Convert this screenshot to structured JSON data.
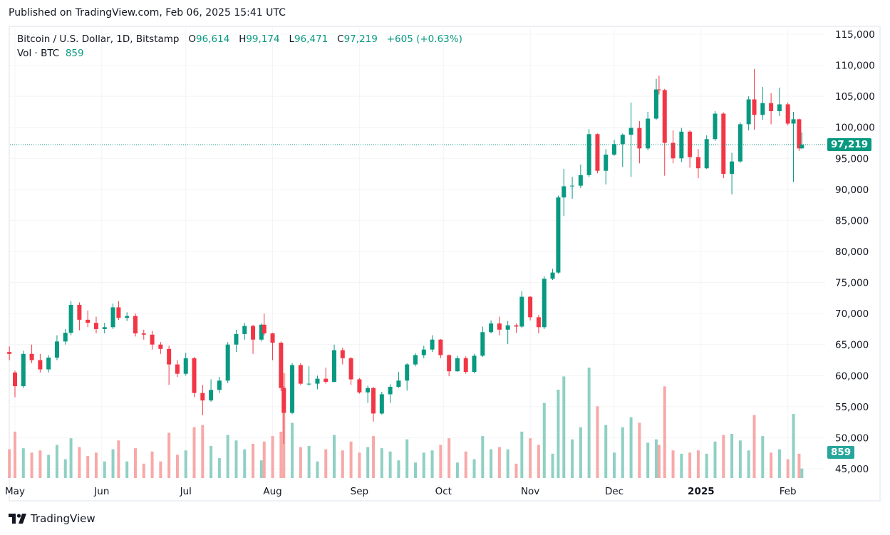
{
  "published": "Published on TradingView.com, Feb 06, 2025 15:41 UTC",
  "legend": {
    "symbol": "Bitcoin / U.S. Dollar, 1D, Bitstamp",
    "o_label": "O",
    "o": "96,614",
    "h_label": "H",
    "h": "99,174",
    "l_label": "L",
    "l": "96,471",
    "c_label": "C",
    "c": "97,219",
    "change": "+605 (+0.63%)",
    "vol_label": "Vol · BTC",
    "vol": "859"
  },
  "footer": {
    "brand": "TradingView",
    "logo_icon": "tradingview-logo-icon"
  },
  "colors": {
    "up": "#089981",
    "down": "#f23645",
    "up_vol": "#8fd0c4",
    "down_vol": "#f7a9a8",
    "grid": "#f3f4f7"
  },
  "chart_data": {
    "type": "candlestick",
    "symbol": "BTCUSD",
    "interval": "1D",
    "ylim": [
      45000,
      115000
    ],
    "y_ticks": [
      "115,000",
      "110,000",
      "105,000",
      "100,000",
      "95,000",
      "90,000",
      "85,000",
      "80,000",
      "75,000",
      "70,000",
      "65,000",
      "60,000",
      "55,000",
      "50,000",
      "45,000"
    ],
    "y_tick_values": [
      115000,
      110000,
      105000,
      100000,
      95000,
      90000,
      85000,
      80000,
      75000,
      70000,
      65000,
      60000,
      55000,
      50000,
      45000
    ],
    "x_ticks": [
      {
        "label": "May",
        "date": "2024-05-01"
      },
      {
        "label": "Jun",
        "date": "2024-06-01"
      },
      {
        "label": "Jul",
        "date": "2024-07-01"
      },
      {
        "label": "Aug",
        "date": "2024-08-01"
      },
      {
        "label": "Sep",
        "date": "2024-09-01"
      },
      {
        "label": "Oct",
        "date": "2024-10-01"
      },
      {
        "label": "Nov",
        "date": "2024-11-01"
      },
      {
        "label": "Dec",
        "date": "2024-12-01"
      },
      {
        "label": "2025",
        "date": "2025-01-01",
        "bold": true
      },
      {
        "label": "Feb",
        "date": "2025-02-01"
      }
    ],
    "grid": true,
    "last_price_label": "97,219",
    "last_volume_label": "859",
    "candles_columns": [
      "date",
      "open",
      "high",
      "low",
      "close",
      "volume"
    ],
    "candles": [
      [
        "2024-04-29",
        63800,
        64700,
        62500,
        63500,
        2600
      ],
      [
        "2024-05-01",
        60500,
        60800,
        56500,
        58300,
        4200
      ],
      [
        "2024-05-04",
        58300,
        64000,
        58000,
        63500,
        2700
      ],
      [
        "2024-05-07",
        63500,
        65000,
        62000,
        62500,
        2300
      ],
      [
        "2024-05-10",
        62500,
        63500,
        60500,
        61000,
        2500
      ],
      [
        "2024-05-13",
        61000,
        63300,
        60500,
        62900,
        2100
      ],
      [
        "2024-05-16",
        62900,
        66500,
        62500,
        65500,
        3000
      ],
      [
        "2024-05-19",
        65500,
        67500,
        65000,
        66900,
        1700
      ],
      [
        "2024-05-21",
        66900,
        72000,
        66500,
        71400,
        3600
      ],
      [
        "2024-05-24",
        71400,
        71800,
        67300,
        69000,
        2800
      ],
      [
        "2024-05-27",
        69000,
        70500,
        67800,
        68500,
        2000
      ],
      [
        "2024-05-30",
        68500,
        69500,
        66800,
        67500,
        2300
      ],
      [
        "2024-06-02",
        67500,
        68500,
        66800,
        67800,
        1500
      ],
      [
        "2024-06-05",
        67800,
        71600,
        67500,
        71000,
        2600
      ],
      [
        "2024-06-07",
        71000,
        72000,
        69000,
        69300,
        3400
      ],
      [
        "2024-06-10",
        69300,
        70200,
        68800,
        69600,
        1500
      ],
      [
        "2024-06-13",
        69600,
        70000,
        66300,
        66800,
        2700
      ],
      [
        "2024-06-16",
        66800,
        67400,
        65800,
        66600,
        1300
      ],
      [
        "2024-06-19",
        66600,
        67200,
        64200,
        65000,
        2400
      ],
      [
        "2024-06-22",
        65000,
        65400,
        63500,
        64300,
        1500
      ],
      [
        "2024-06-25",
        64300,
        64800,
        58500,
        61800,
        4100
      ],
      [
        "2024-06-28",
        61800,
        62500,
        59800,
        60300,
        2100
      ],
      [
        "2024-07-01",
        60300,
        63700,
        60000,
        62800,
        2500
      ],
      [
        "2024-07-04",
        62800,
        63000,
        56500,
        57200,
        4600
      ],
      [
        "2024-07-07",
        57200,
        58500,
        53600,
        56000,
        4800
      ],
      [
        "2024-07-10",
        56000,
        59400,
        55800,
        57700,
        2900
      ],
      [
        "2024-07-13",
        57700,
        59800,
        57200,
        59200,
        1800
      ],
      [
        "2024-07-16",
        59200,
        65400,
        58800,
        65000,
        3900
      ],
      [
        "2024-07-19",
        65000,
        67400,
        63800,
        66700,
        3400
      ],
      [
        "2024-07-22",
        66700,
        68500,
        65800,
        68000,
        2600
      ],
      [
        "2024-07-25",
        68000,
        68200,
        63500,
        65800,
        3100
      ],
      [
        "2024-07-28",
        65800,
        68400,
        65500,
        68200,
        1600
      ],
      [
        "2024-07-29",
        68200,
        70000,
        66500,
        66800,
        3300
      ],
      [
        "2024-08-01",
        66800,
        66900,
        62500,
        65300,
        3800
      ],
      [
        "2024-08-04",
        65300,
        65500,
        57500,
        58000,
        4200
      ],
      [
        "2024-08-05",
        58000,
        58300,
        49000,
        54000,
        9500
      ],
      [
        "2024-08-08",
        54000,
        62000,
        53800,
        61700,
        5000
      ],
      [
        "2024-08-11",
        61700,
        62000,
        58500,
        58700,
        2800
      ],
      [
        "2024-08-14",
        58700,
        61500,
        58400,
        58700,
        2900
      ],
      [
        "2024-08-17",
        58700,
        60000,
        57800,
        59500,
        1500
      ],
      [
        "2024-08-20",
        59500,
        61300,
        58700,
        59000,
        2600
      ],
      [
        "2024-08-23",
        59000,
        65000,
        58900,
        64100,
        3900
      ],
      [
        "2024-08-26",
        64100,
        64500,
        61800,
        62800,
        2500
      ],
      [
        "2024-08-29",
        62800,
        63000,
        58500,
        59400,
        3300
      ],
      [
        "2024-09-01",
        59400,
        59600,
        57100,
        57300,
        2300
      ],
      [
        "2024-09-04",
        57300,
        58400,
        55600,
        58000,
        2800
      ],
      [
        "2024-09-06",
        58000,
        58200,
        52600,
        53900,
        3800
      ],
      [
        "2024-09-09",
        53900,
        57400,
        53700,
        57000,
        2700
      ],
      [
        "2024-09-12",
        57000,
        58600,
        55600,
        58200,
        2400
      ],
      [
        "2024-09-15",
        58200,
        60600,
        58000,
        59200,
        1600
      ],
      [
        "2024-09-18",
        59200,
        62000,
        57600,
        61800,
        3500
      ],
      [
        "2024-09-21",
        61800,
        63600,
        61500,
        63300,
        1400
      ],
      [
        "2024-09-24",
        63300,
        64800,
        62800,
        64200,
        2300
      ],
      [
        "2024-09-27",
        64200,
        66500,
        63800,
        65800,
        2500
      ],
      [
        "2024-09-30",
        65800,
        65900,
        62800,
        63300,
        3000
      ],
      [
        "2024-10-03",
        63300,
        63400,
        59900,
        60700,
        3600
      ],
      [
        "2024-10-06",
        60700,
        63200,
        60600,
        62800,
        1400
      ],
      [
        "2024-10-09",
        62800,
        63100,
        60300,
        60600,
        2400
      ],
      [
        "2024-10-12",
        60600,
        63500,
        60400,
        63200,
        1700
      ],
      [
        "2024-10-15",
        63200,
        67900,
        63000,
        67000,
        3800
      ],
      [
        "2024-10-18",
        67000,
        68900,
        66800,
        68400,
        2600
      ],
      [
        "2024-10-21",
        68400,
        69500,
        66500,
        67400,
        2800
      ],
      [
        "2024-10-24",
        67400,
        68800,
        65100,
        68100,
        2600
      ],
      [
        "2024-10-27",
        68100,
        68400,
        66900,
        67900,
        1300
      ],
      [
        "2024-10-29",
        67900,
        73600,
        67700,
        72700,
        4200
      ],
      [
        "2024-11-01",
        72700,
        72800,
        68900,
        69400,
        3600
      ],
      [
        "2024-11-04",
        69400,
        69800,
        66800,
        67800,
        3000
      ],
      [
        "2024-11-06",
        67800,
        76000,
        67500,
        75600,
        6800
      ],
      [
        "2024-11-09",
        75600,
        77200,
        75400,
        76600,
        2200
      ],
      [
        "2024-11-11",
        76600,
        89000,
        76400,
        88700,
        8000
      ],
      [
        "2024-11-13",
        88700,
        93300,
        85700,
        90500,
        9200
      ],
      [
        "2024-11-16",
        90500,
        92000,
        88500,
        90600,
        3500
      ],
      [
        "2024-11-19",
        90600,
        94000,
        90200,
        92300,
        4600
      ],
      [
        "2024-11-22",
        92300,
        99700,
        92000,
        98900,
        10000
      ],
      [
        "2024-11-25",
        98900,
        99000,
        92600,
        93000,
        6500
      ],
      [
        "2024-11-28",
        93000,
        96500,
        90800,
        95600,
        4800
      ],
      [
        "2024-12-01",
        95600,
        98000,
        95400,
        97300,
        2300
      ],
      [
        "2024-12-04",
        97300,
        99000,
        93600,
        98800,
        4600
      ],
      [
        "2024-12-07",
        98800,
        104000,
        92000,
        99900,
        5500
      ],
      [
        "2024-12-10",
        99900,
        101000,
        94200,
        96600,
        5000
      ],
      [
        "2024-12-13",
        96600,
        102500,
        96300,
        101400,
        3200
      ],
      [
        "2024-12-16",
        101400,
        107800,
        101200,
        106100,
        3500
      ],
      [
        "2024-12-17",
        106100,
        108300,
        105300,
        106000,
        3000
      ],
      [
        "2024-12-19",
        106000,
        106200,
        92200,
        97500,
        8300
      ],
      [
        "2024-12-22",
        97500,
        99500,
        94200,
        95000,
        2500
      ],
      [
        "2024-12-25",
        95000,
        99900,
        94400,
        99300,
        2200
      ],
      [
        "2024-12-28",
        99300,
        99500,
        93500,
        95200,
        2300
      ],
      [
        "2024-12-31",
        95200,
        96500,
        91800,
        93400,
        2500
      ],
      [
        "2025-01-03",
        93400,
        98700,
        93300,
        98100,
        2200
      ],
      [
        "2025-01-06",
        98100,
        102600,
        97800,
        102200,
        3300
      ],
      [
        "2025-01-09",
        102200,
        102400,
        91800,
        92500,
        3900
      ],
      [
        "2025-01-12",
        92500,
        95900,
        89200,
        94500,
        4000
      ],
      [
        "2025-01-15",
        94500,
        100800,
        94300,
        100500,
        3400
      ],
      [
        "2025-01-18",
        100500,
        105000,
        99500,
        104500,
        2500
      ],
      [
        "2025-01-20",
        104500,
        109400,
        99600,
        102000,
        5700
      ],
      [
        "2025-01-23",
        102000,
        106500,
        101200,
        103900,
        3800
      ],
      [
        "2025-01-26",
        103900,
        105500,
        100500,
        102600,
        2300
      ],
      [
        "2025-01-29",
        102600,
        106400,
        101800,
        103700,
        2600
      ],
      [
        "2025-02-01",
        103700,
        104000,
        100300,
        100600,
        1700
      ],
      [
        "2025-02-03",
        100600,
        102500,
        91200,
        101300,
        5800
      ],
      [
        "2025-02-05",
        101300,
        101400,
        96200,
        96600,
        2200
      ],
      [
        "2025-02-06",
        96614,
        99174,
        96471,
        97219,
        859
      ]
    ]
  }
}
